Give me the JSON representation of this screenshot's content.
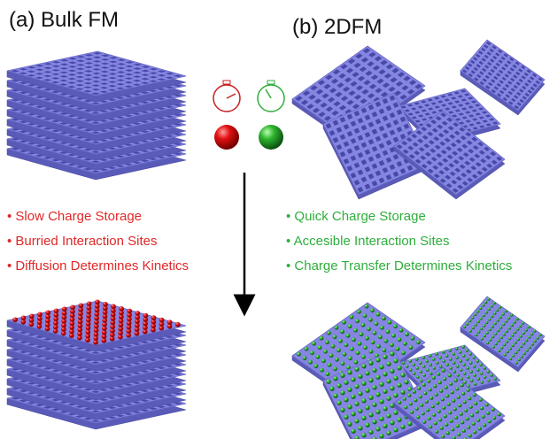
{
  "panel_a": {
    "title": "(a) Bulk FM",
    "bullets": [
      "• Slow Charge Storage",
      "• Burried Interaction Sites",
      "• Diffusion Determines Kinetics"
    ]
  },
  "panel_b": {
    "title": "(b) 2DFM",
    "bullets": [
      "• Quick Charge Storage",
      "• Accesible Interaction Sites",
      "• Charge Transfer Determines Kinetics"
    ]
  }
}
